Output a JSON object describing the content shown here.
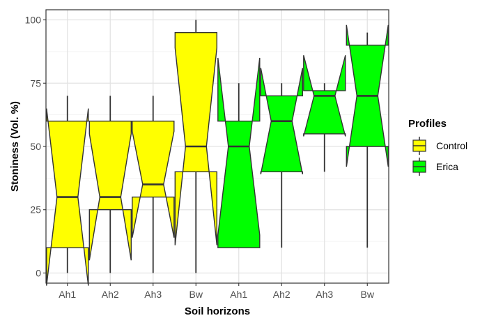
{
  "chart_data": {
    "type": "notched-boxplot",
    "xlabel": "Soil horizons",
    "ylabel": "Stoniness (Vol. %)",
    "ylim": [
      -4,
      104
    ],
    "yticks": [
      0,
      25,
      50,
      75,
      100
    ],
    "grid": true,
    "legend": {
      "title": "Profiles",
      "position": "right",
      "entries": [
        {
          "name": "Control",
          "color": "#ffff00"
        },
        {
          "name": "Erica",
          "color": "#00ff00"
        }
      ]
    },
    "categories": [
      "Ah1",
      "Ah2",
      "Ah3",
      "Bw",
      "Ah1",
      "Ah2",
      "Ah3",
      "Bw"
    ],
    "boxes": [
      {
        "category": "Ah1",
        "group": "Control",
        "whisker_low": 0,
        "q1": 10,
        "median": 30,
        "q3": 60,
        "whisker_high": 70,
        "notch_low": -5,
        "notch_high": 65
      },
      {
        "category": "Ah2",
        "group": "Control",
        "whisker_low": 0,
        "q1": 25,
        "median": 30,
        "q3": 60,
        "whisker_high": 70,
        "notch_low": 5,
        "notch_high": 55
      },
      {
        "category": "Ah3",
        "group": "Control",
        "whisker_low": 0,
        "q1": 30,
        "median": 35,
        "q3": 60,
        "whisker_high": 70,
        "notch_low": 14,
        "notch_high": 56
      },
      {
        "category": "Bw",
        "group": "Control",
        "whisker_low": 0,
        "q1": 40,
        "median": 50,
        "q3": 95,
        "whisker_high": 100,
        "notch_low": 11,
        "notch_high": 89
      },
      {
        "category": "Ah1",
        "group": "Erica",
        "whisker_low": 10,
        "q1": 10,
        "median": 50,
        "q3": 60,
        "whisker_high": 75,
        "notch_low": 15,
        "notch_high": 85
      },
      {
        "category": "Ah2",
        "group": "Erica",
        "whisker_low": 10,
        "q1": 40,
        "median": 60,
        "q3": 70,
        "whisker_high": 75,
        "notch_low": 39,
        "notch_high": 81
      },
      {
        "category": "Ah3",
        "group": "Erica",
        "whisker_low": 40,
        "q1": 55,
        "median": 70,
        "q3": 72,
        "whisker_high": 75,
        "notch_low": 54,
        "notch_high": 86
      },
      {
        "category": "Bw",
        "group": "Erica",
        "whisker_low": 10,
        "q1": 50,
        "median": 70,
        "q3": 90,
        "whisker_high": 95,
        "notch_low": 42,
        "notch_high": 98
      }
    ]
  }
}
